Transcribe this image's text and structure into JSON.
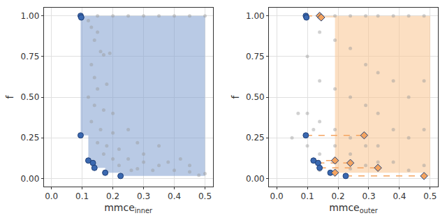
{
  "chart_data": [
    {
      "type": "scatter",
      "x_label": {
        "text": "mmce",
        "subscript": "inner"
      },
      "y_label": "f",
      "xlim": [
        -0.025,
        0.525
      ],
      "ylim": [
        -0.05,
        1.05
      ],
      "xticks": [
        {
          "value": 0,
          "label": "0.0"
        },
        0.1,
        0.2,
        0.3,
        0.4,
        0.5
      ],
      "yticks": [
        {
          "value": 0,
          "label": "0.00"
        },
        0.25,
        {
          "value": 0.5,
          "label": "0.50"
        },
        0.75,
        {
          "value": 1,
          "label": "1.00"
        }
      ],
      "grid": true,
      "series": [
        {
          "type": "area",
          "color": "#7f9fd0",
          "x": [
            0.095,
            0.5,
            0.5,
            0.225,
            0.225,
            0.175,
            0.175,
            0.14,
            0.14,
            0.135,
            0.135,
            0.12,
            0.12,
            0.095
          ],
          "y": [
            1,
            1,
            0.015,
            0.015,
            0.035,
            0.035,
            0.065,
            0.065,
            0.095,
            0.095,
            0.11,
            0.11,
            0.265,
            0.265
          ]
        },
        {
          "type": "scatter",
          "color": "#999999",
          "marker": "circle",
          "x": [
            0.1,
            0.15,
            0.2,
            0.25,
            0.3,
            0.35,
            0.4,
            0.45,
            0.5,
            0.12,
            0.13,
            0.15,
            0.14,
            0.16,
            0.17,
            0.19,
            0.13,
            0.14,
            0.15,
            0.18,
            0.12,
            0.14,
            0.17,
            0.2,
            0.13,
            0.16,
            0.2,
            0.25,
            0.15,
            0.18,
            0.22,
            0.28,
            0.17,
            0.2,
            0.25,
            0.3,
            0.35,
            0.22,
            0.28,
            0.33,
            0.4,
            0.45,
            0.5,
            0.38,
            0.42,
            0.3,
            0.35,
            0.45,
            0.26,
            0.48
          ],
          "y": [
            1,
            1,
            1,
            1,
            1,
            1,
            1,
            1,
            1,
            0.97,
            0.93,
            0.9,
            0.85,
            0.78,
            0.76,
            0.77,
            0.7,
            0.62,
            0.55,
            0.58,
            0.5,
            0.45,
            0.42,
            0.4,
            0.35,
            0.3,
            0.28,
            0.3,
            0.22,
            0.2,
            0.18,
            0.22,
            0.15,
            0.12,
            0.12,
            0.1,
            0.08,
            0.08,
            0.06,
            0.05,
            0.05,
            0.04,
            0.03,
            0.1,
            0.12,
            0.15,
            0.2,
            0.08,
            0.05,
            0.02
          ]
        },
        {
          "type": "scatter",
          "color": "#3a68b0",
          "marker": "circle",
          "x": [
            0.095,
            0.097,
            0.095,
            0.12,
            0.135,
            0.14,
            0.175,
            0.225
          ],
          "y": [
            1,
            0.99,
            0.265,
            0.11,
            0.095,
            0.065,
            0.035,
            0.015
          ]
        }
      ]
    },
    {
      "type": "scatter",
      "x_label": {
        "text": "mmce",
        "subscript": "outer"
      },
      "y_label": "f",
      "xlim": [
        -0.025,
        0.525
      ],
      "ylim": [
        -0.05,
        1.05
      ],
      "xticks": [
        {
          "value": 0,
          "label": "0.0"
        },
        0.1,
        0.2,
        0.3,
        0.4,
        0.5
      ],
      "yticks": [
        {
          "value": 0,
          "label": "0.00"
        },
        0.25,
        {
          "value": 0.5,
          "label": "0.50"
        },
        0.75,
        {
          "value": 1,
          "label": "1.00"
        }
      ],
      "grid": true,
      "series": [
        {
          "type": "area",
          "color": "#f9c48f",
          "x": [
            0.14,
            0.5,
            0.5,
            0.48,
            0.48,
            0.19,
            0.19,
            0.14
          ],
          "y": [
            1,
            1,
            0.015,
            0.015,
            0.035,
            0.035,
            0.99,
            0.99
          ]
        },
        {
          "type": "scatter",
          "color": "#999999",
          "marker": "circle",
          "x": [
            0.1,
            0.1,
            0.1,
            0.14,
            0.14,
            0.14,
            0.14,
            0.14,
            0.19,
            0.19,
            0.19,
            0.19,
            0.19,
            0.19,
            0.24,
            0.24,
            0.24,
            0.24,
            0.24,
            0.24,
            0.29,
            0.29,
            0.29,
            0.29,
            0.29,
            0.33,
            0.33,
            0.33,
            0.33,
            0.33,
            0.38,
            0.38,
            0.38,
            0.38,
            0.43,
            0.43,
            0.43,
            0.43,
            0.48,
            0.48,
            0.48,
            0.48,
            0.05,
            0.07,
            0.12
          ],
          "y": [
            0.4,
            0.75,
            0.2,
            0.9,
            0.6,
            0.35,
            0.15,
            0.05,
            1,
            0.85,
            0.55,
            0.3,
            0.2,
            0.12,
            1,
            0.8,
            0.5,
            0.25,
            0.15,
            0.06,
            1,
            0.7,
            0.45,
            0.2,
            0.08,
            1,
            0.65,
            0.4,
            0.2,
            0.1,
            1,
            0.6,
            0.3,
            0.1,
            1,
            0.5,
            0.25,
            0.05,
            1,
            0.6,
            0.3,
            0.08,
            0.25,
            0.4,
            0.3
          ]
        },
        {
          "type": "line",
          "color": "#f4a460",
          "line_style": "dashed",
          "x": [
            0.095,
            0.14,
            null,
            0.095,
            0.285,
            null,
            0.12,
            0.19,
            null,
            0.135,
            0.24,
            null,
            0.14,
            0.33,
            null,
            0.175,
            0.19,
            null,
            0.225,
            0.48
          ],
          "y": [
            1,
            1,
            null,
            0.265,
            0.265,
            null,
            0.11,
            0.11,
            null,
            0.095,
            0.095,
            null,
            0.065,
            0.065,
            null,
            0.035,
            0.035,
            null,
            0.015,
            0.015
          ]
        },
        {
          "type": "scatter",
          "color": "#3a68b0",
          "marker": "circle",
          "x": [
            0.095,
            0.097,
            0.095,
            0.12,
            0.135,
            0.14,
            0.175,
            0.225
          ],
          "y": [
            1,
            0.99,
            0.265,
            0.11,
            0.095,
            0.065,
            0.035,
            0.015
          ]
        },
        {
          "type": "scatter",
          "color": "#f4a460",
          "marker": "diamond",
          "x": [
            0.14,
            0.145,
            0.285,
            0.19,
            0.24,
            0.33,
            0.19,
            0.48
          ],
          "y": [
            1,
            0.99,
            0.265,
            0.11,
            0.095,
            0.065,
            0.035,
            0.015
          ]
        }
      ]
    }
  ]
}
